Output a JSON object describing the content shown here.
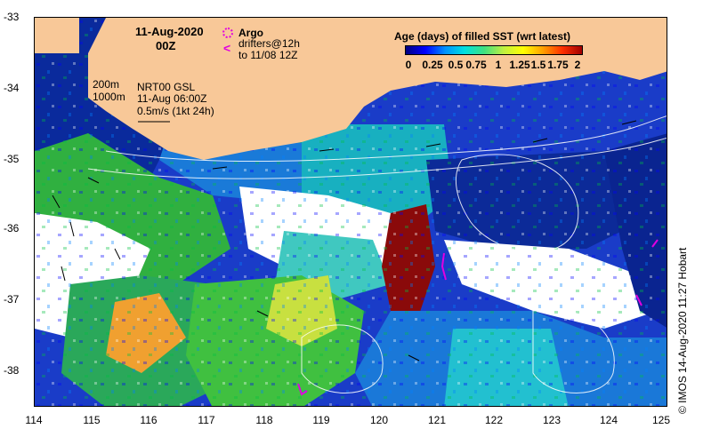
{
  "date": "11-Aug-2020",
  "time": "00Z",
  "legend": {
    "argo": "Argo",
    "drifters": "drifters@12h",
    "drifters_range": "to 11/08 12Z",
    "contour_200": "200m",
    "contour_1000": "1000m",
    "model": "NRT00 GSL",
    "model_time": "11-Aug 06:00Z",
    "vector_scale": "0.5m/s (1kt 24h)"
  },
  "colorbar": {
    "title": "Age (days) of filled SST (wrt latest)",
    "ticks": [
      "0",
      "0.25",
      "0.5",
      "0.75",
      "1",
      "1.25",
      "1.5",
      "1.75",
      "2"
    ]
  },
  "lat_labels": [
    "-33",
    "-34",
    "-35",
    "-36",
    "-37",
    "-38"
  ],
  "lon_labels": [
    "114",
    "115",
    "116",
    "117",
    "118",
    "119",
    "120",
    "121",
    "122",
    "123",
    "124",
    "125"
  ],
  "credit": "© IMOS 14-Aug-2020 11:27 Hobart",
  "colors": {
    "land": "#f8c898",
    "drifter": "#e000e0",
    "contour": "#ffffff"
  }
}
